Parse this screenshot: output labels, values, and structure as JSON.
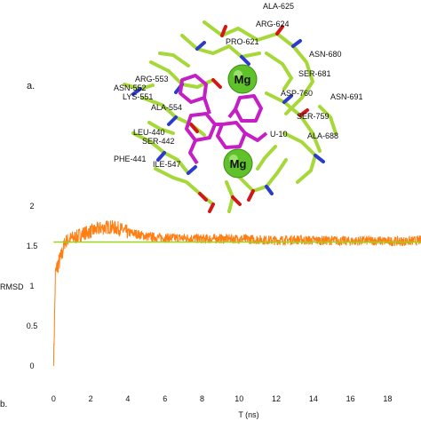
{
  "panel_a": {
    "label": "a.",
    "ion_label": "Mg",
    "residue_labels": [
      "ALA-625",
      "ARG-624",
      "PRO-621",
      "ASN-680",
      "SER-681",
      "ARG-553",
      "ASN-552",
      "LYS-551",
      "ALA-554",
      "ASP-760",
      "ASN-691",
      "SER-759",
      "ALA-688",
      "LEU-440",
      "SER-442",
      "PHE-441",
      "ILE-547",
      "U-10"
    ],
    "colors": {
      "carbon": "#a6d83a",
      "nitrogen": "#2b3cc9",
      "oxygen": "#d01818",
      "ligand": "#c41ec4",
      "mg_sphere": "#5fc22a"
    }
  },
  "panel_b": {
    "label": "b.",
    "xlabel": "T (ns)",
    "ylabel": "RMSD",
    "chart_data": {
      "type": "line",
      "x_ticks": [
        0,
        2,
        4,
        6,
        8,
        10,
        12,
        14,
        16,
        18
      ],
      "y_ticks": [
        0,
        0.5,
        1,
        1.5,
        2
      ],
      "xlim": [
        -0.4,
        19.8
      ],
      "ylim": [
        0,
        2
      ],
      "reference_line": 1.55,
      "series": [
        {
          "x": [
            0,
            0.05,
            0.1,
            0.2,
            0.4,
            0.6,
            0.8,
            1.0,
            1.3,
            1.6,
            2.0,
            2.5,
            3.0,
            3.5,
            4.0,
            4.5,
            5.0,
            6.0,
            7.0,
            8.0,
            9.0,
            10.0,
            11.0,
            12.0,
            13.0,
            14.0,
            15.0,
            16.0,
            17.0,
            18.0,
            19.0,
            19.8
          ],
          "y": [
            0.02,
            0.55,
            1.15,
            1.25,
            1.35,
            1.55,
            1.58,
            1.6,
            1.62,
            1.66,
            1.68,
            1.72,
            1.74,
            1.72,
            1.67,
            1.65,
            1.62,
            1.6,
            1.6,
            1.59,
            1.59,
            1.59,
            1.58,
            1.57,
            1.58,
            1.57,
            1.57,
            1.56,
            1.57,
            1.56,
            1.56,
            1.57
          ],
          "color": "#ff7f14"
        }
      ],
      "colors": {
        "series": "#ff7f14",
        "reference": "#9bd21a"
      }
    }
  }
}
